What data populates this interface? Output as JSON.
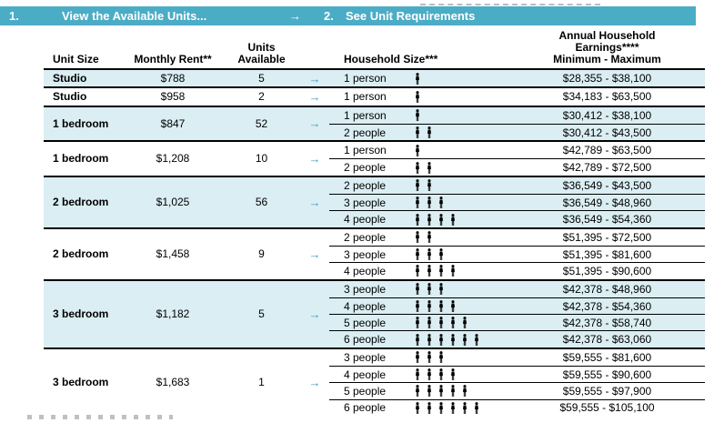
{
  "header_bar": {
    "step1_number": "1.",
    "step1_label": "View the Available Units...",
    "arrow": "→",
    "step2_number": "2.",
    "step2_label": "See Unit Requirements"
  },
  "columns": {
    "unit_size": "Unit Size",
    "monthly_rent": "Monthly Rent**",
    "units_available_line1": "Units",
    "units_available_line2": "Available",
    "household_size": "Household Size***",
    "earnings_line1": "Annual Household",
    "earnings_line2": "Earnings****",
    "earnings_line3": "Minimum - Maximum"
  },
  "table": {
    "arrow": "→"
  },
  "colors": {
    "step_bar_teal": "#4BACC6",
    "row_shade_blue": "#DAEEF3",
    "arrow_teal": "#3D9DBB"
  },
  "groups": [
    {
      "unit_size": "Studio",
      "rent": "$788",
      "available": "5",
      "shaded": true,
      "requirements": [
        {
          "household": "1 person",
          "persons": 1,
          "earnings": "$28,355 - $38,100"
        }
      ]
    },
    {
      "unit_size": "Studio",
      "rent": "$958",
      "available": "2",
      "shaded": false,
      "requirements": [
        {
          "household": "1 person",
          "persons": 1,
          "earnings": "$34,183 - $63,500"
        }
      ]
    },
    {
      "unit_size": "1 bedroom",
      "rent": "$847",
      "available": "52",
      "shaded": true,
      "requirements": [
        {
          "household": "1 person",
          "persons": 1,
          "earnings": "$30,412 - $38,100"
        },
        {
          "household": "2 people",
          "persons": 2,
          "earnings": "$30,412 - $43,500"
        }
      ]
    },
    {
      "unit_size": "1 bedroom",
      "rent": "$1,208",
      "available": "10",
      "shaded": false,
      "requirements": [
        {
          "household": "1 person",
          "persons": 1,
          "earnings": "$42,789 - $63,500"
        },
        {
          "household": "2 people",
          "persons": 2,
          "earnings": "$42,789 - $72,500"
        }
      ]
    },
    {
      "unit_size": "2 bedroom",
      "rent": "$1,025",
      "available": "56",
      "shaded": true,
      "requirements": [
        {
          "household": "2 people",
          "persons": 2,
          "earnings": "$36,549 - $43,500"
        },
        {
          "household": "3 people",
          "persons": 3,
          "earnings": "$36,549 - $48,960"
        },
        {
          "household": "4 people",
          "persons": 4,
          "earnings": "$36,549 - $54,360"
        }
      ]
    },
    {
      "unit_size": "2 bedroom",
      "rent": "$1,458",
      "available": "9",
      "shaded": false,
      "requirements": [
        {
          "household": "2 people",
          "persons": 2,
          "earnings": "$51,395 - $72,500"
        },
        {
          "household": "3 people",
          "persons": 3,
          "earnings": "$51,395 - $81,600"
        },
        {
          "household": "4 people",
          "persons": 4,
          "earnings": "$51,395 - $90,600"
        }
      ]
    },
    {
      "unit_size": "3 bedroom",
      "rent": "$1,182",
      "available": "5",
      "shaded": true,
      "requirements": [
        {
          "household": "3 people",
          "persons": 3,
          "earnings": "$42,378 - $48,960"
        },
        {
          "household": "4 people",
          "persons": 4,
          "earnings": "$42,378 - $54,360"
        },
        {
          "household": "5 people",
          "persons": 5,
          "earnings": "$42,378 - $58,740"
        },
        {
          "household": "6 people",
          "persons": 6,
          "earnings": "$42,378 - $63,060"
        }
      ]
    },
    {
      "unit_size": "3 bedroom",
      "rent": "$1,683",
      "available": "1",
      "shaded": false,
      "requirements": [
        {
          "household": "3 people",
          "persons": 3,
          "earnings": "$59,555 - $81,600"
        },
        {
          "household": "4 people",
          "persons": 4,
          "earnings": "$59,555 - $90,600"
        },
        {
          "household": "5 people",
          "persons": 5,
          "earnings": "$59,555 - $97,900"
        },
        {
          "household": "6 people",
          "persons": 6,
          "earnings": "$59,555 - $105,100"
        }
      ]
    }
  ]
}
